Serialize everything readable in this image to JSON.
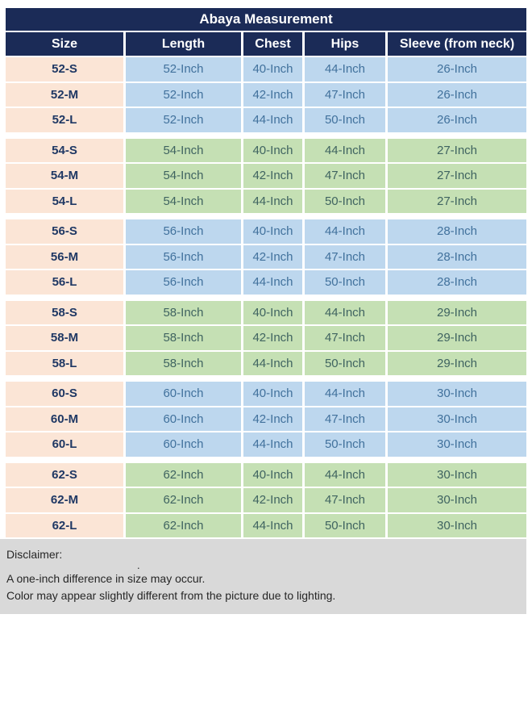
{
  "table": {
    "title": "Abaya Measurement",
    "columns": [
      "Size",
      "Length",
      "Chest",
      "Hips",
      "Sleeve (from neck)"
    ],
    "groups": [
      {
        "tone": "blue",
        "rows": [
          {
            "size": "52-S",
            "length": "52-Inch",
            "chest": "40-Inch",
            "hips": "44-Inch",
            "sleeve": "26-Inch"
          },
          {
            "size": "52-M",
            "length": "52-Inch",
            "chest": "42-Inch",
            "hips": "47-Inch",
            "sleeve": "26-Inch"
          },
          {
            "size": "52-L",
            "length": "52-Inch",
            "chest": "44-Inch",
            "hips": "50-Inch",
            "sleeve": "26-Inch"
          }
        ]
      },
      {
        "tone": "green",
        "rows": [
          {
            "size": "54-S",
            "length": "54-Inch",
            "chest": "40-Inch",
            "hips": "44-Inch",
            "sleeve": "27-Inch"
          },
          {
            "size": "54-M",
            "length": "54-Inch",
            "chest": "42-Inch",
            "hips": "47-Inch",
            "sleeve": "27-Inch"
          },
          {
            "size": "54-L",
            "length": "54-Inch",
            "chest": "44-Inch",
            "hips": "50-Inch",
            "sleeve": "27-Inch"
          }
        ]
      },
      {
        "tone": "blue",
        "rows": [
          {
            "size": "56-S",
            "length": "56-Inch",
            "chest": "40-Inch",
            "hips": "44-Inch",
            "sleeve": "28-Inch"
          },
          {
            "size": "56-M",
            "length": "56-Inch",
            "chest": "42-Inch",
            "hips": "47-Inch",
            "sleeve": "28-Inch"
          },
          {
            "size": "56-L",
            "length": "56-Inch",
            "chest": "44-Inch",
            "hips": "50-Inch",
            "sleeve": "28-Inch"
          }
        ]
      },
      {
        "tone": "green",
        "rows": [
          {
            "size": "58-S",
            "length": "58-Inch",
            "chest": "40-Inch",
            "hips": "44-Inch",
            "sleeve": "29-Inch"
          },
          {
            "size": "58-M",
            "length": "58-Inch",
            "chest": "42-Inch",
            "hips": "47-Inch",
            "sleeve": "29-Inch"
          },
          {
            "size": "58-L",
            "length": "58-Inch",
            "chest": "44-Inch",
            "hips": "50-Inch",
            "sleeve": "29-Inch"
          }
        ]
      },
      {
        "tone": "blue",
        "rows": [
          {
            "size": "60-S",
            "length": "60-Inch",
            "chest": "40-Inch",
            "hips": "44-Inch",
            "sleeve": "30-Inch"
          },
          {
            "size": "60-M",
            "length": "60-Inch",
            "chest": "42-Inch",
            "hips": "47-Inch",
            "sleeve": "30-Inch"
          },
          {
            "size": "60-L",
            "length": "60-Inch",
            "chest": "44-Inch",
            "hips": "50-Inch",
            "sleeve": "30-Inch"
          }
        ]
      },
      {
        "tone": "green",
        "rows": [
          {
            "size": "62-S",
            "length": "62-Inch",
            "chest": "40-Inch",
            "hips": "44-Inch",
            "sleeve": "30-Inch"
          },
          {
            "size": "62-M",
            "length": "62-Inch",
            "chest": "42-Inch",
            "hips": "47-Inch",
            "sleeve": "30-Inch"
          },
          {
            "size": "62-L",
            "length": "62-Inch",
            "chest": "44-Inch",
            "hips": "50-Inch",
            "sleeve": "30-Inch"
          }
        ]
      }
    ]
  },
  "disclaimer": {
    "heading": "Disclaimer:",
    "stray_mark": ".",
    "lines": [
      "A one-inch difference in size may occur.",
      "Color may appear slightly different from the picture due to lighting."
    ]
  },
  "colors": {
    "navy_header": "#1b2b57",
    "header_text": "#ffffff",
    "size_column_bg": "#fbe5d6",
    "size_text": "#1f3864",
    "blue_row_bg": "#bdd7ee",
    "blue_row_text": "#41719c",
    "green_row_bg": "#c5e0b4",
    "green_row_text": "#3f6360",
    "disclaimer_bg": "#d9d9d9",
    "disclaimer_text": "#262626",
    "page_bg": "#ffffff"
  },
  "chart_data": {
    "type": "table",
    "title": "Abaya Measurement",
    "columns": [
      "Size",
      "Length",
      "Chest",
      "Hips",
      "Sleeve (from neck)"
    ],
    "rows": [
      [
        "52-S",
        "52-Inch",
        "40-Inch",
        "44-Inch",
        "26-Inch"
      ],
      [
        "52-M",
        "52-Inch",
        "42-Inch",
        "47-Inch",
        "26-Inch"
      ],
      [
        "52-L",
        "52-Inch",
        "44-Inch",
        "50-Inch",
        "26-Inch"
      ],
      [
        "54-S",
        "54-Inch",
        "40-Inch",
        "44-Inch",
        "27-Inch"
      ],
      [
        "54-M",
        "54-Inch",
        "42-Inch",
        "47-Inch",
        "27-Inch"
      ],
      [
        "54-L",
        "54-Inch",
        "44-Inch",
        "50-Inch",
        "27-Inch"
      ],
      [
        "56-S",
        "56-Inch",
        "40-Inch",
        "44-Inch",
        "28-Inch"
      ],
      [
        "56-M",
        "56-Inch",
        "42-Inch",
        "47-Inch",
        "28-Inch"
      ],
      [
        "56-L",
        "56-Inch",
        "44-Inch",
        "50-Inch",
        "28-Inch"
      ],
      [
        "58-S",
        "58-Inch",
        "40-Inch",
        "44-Inch",
        "29-Inch"
      ],
      [
        "58-M",
        "58-Inch",
        "42-Inch",
        "47-Inch",
        "29-Inch"
      ],
      [
        "58-L",
        "58-Inch",
        "44-Inch",
        "50-Inch",
        "29-Inch"
      ],
      [
        "60-S",
        "60-Inch",
        "40-Inch",
        "44-Inch",
        "30-Inch"
      ],
      [
        "60-M",
        "60-Inch",
        "42-Inch",
        "47-Inch",
        "30-Inch"
      ],
      [
        "60-L",
        "60-Inch",
        "44-Inch",
        "50-Inch",
        "30-Inch"
      ],
      [
        "62-S",
        "62-Inch",
        "40-Inch",
        "44-Inch",
        "30-Inch"
      ],
      [
        "62-M",
        "62-Inch",
        "42-Inch",
        "47-Inch",
        "30-Inch"
      ],
      [
        "62-L",
        "62-Inch",
        "44-Inch",
        "50-Inch",
        "30-Inch"
      ]
    ]
  }
}
